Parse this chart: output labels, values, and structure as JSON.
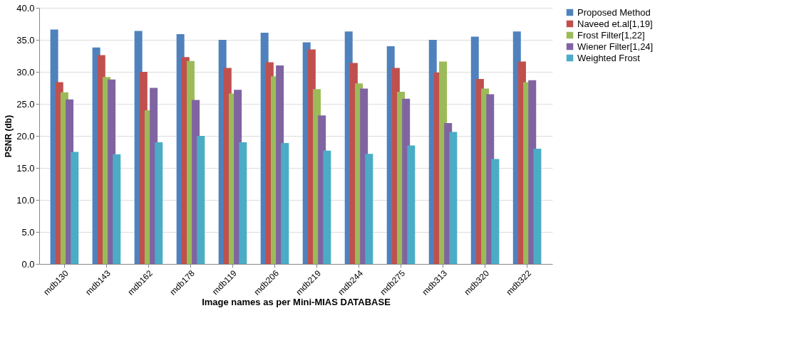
{
  "chart_data": {
    "type": "bar",
    "xlabel": "Image names as per Mini-MIAS DATABASE",
    "ylabel": "PSNR (db)",
    "categories": [
      "mdb130",
      "mdb143",
      "mdb162",
      "mdb178",
      "mdb119",
      "mdb206",
      "mdb219",
      "mdb244",
      "mdb275",
      "mdb313",
      "mdb320",
      "mdb322"
    ],
    "series": [
      {
        "name": "Proposed Method",
        "color": "#4f81bd",
        "values": [
          36.6,
          33.8,
          36.4,
          35.9,
          35.0,
          36.1,
          34.6,
          36.3,
          34.0,
          35.0,
          35.5,
          36.3
        ]
      },
      {
        "name": "Naveed et.al[1,19]",
        "color": "#c0504d",
        "values": [
          28.4,
          32.6,
          30.0,
          32.3,
          30.6,
          31.5,
          33.5,
          31.4,
          30.6,
          29.9,
          28.9,
          31.6
        ]
      },
      {
        "name": "Frost Filter[1,22]",
        "color": "#9bbb59",
        "values": [
          26.8,
          29.2,
          24.0,
          31.7,
          26.6,
          29.3,
          27.3,
          28.2,
          26.9,
          31.6,
          27.4,
          28.4
        ]
      },
      {
        "name": "Wiener Filter[1,24]",
        "color": "#8064a2",
        "values": [
          25.7,
          28.8,
          27.5,
          25.6,
          27.2,
          31.0,
          23.2,
          27.4,
          25.8,
          22.0,
          26.5,
          28.7
        ]
      },
      {
        "name": "Weighted Frost",
        "color": "#4bacc6",
        "values": [
          17.5,
          17.1,
          19.0,
          20.0,
          19.0,
          18.9,
          17.7,
          17.2,
          18.5,
          20.6,
          16.4,
          18.0
        ]
      }
    ],
    "ylim": [
      0,
      40
    ],
    "yticks": [
      {
        "value": 0,
        "label": "0.0"
      },
      {
        "value": 5,
        "label": "5.0"
      },
      {
        "value": 10,
        "label": "10.0"
      },
      {
        "value": 15,
        "label": "15.0"
      },
      {
        "value": 20,
        "label": "20.0"
      },
      {
        "value": 25,
        "label": "25.0"
      },
      {
        "value": 30,
        "label": "30.0"
      },
      {
        "value": 35,
        "label": "35.0"
      },
      {
        "value": 40,
        "label": "40.0"
      }
    ],
    "grid": "y",
    "legend": "right"
  }
}
